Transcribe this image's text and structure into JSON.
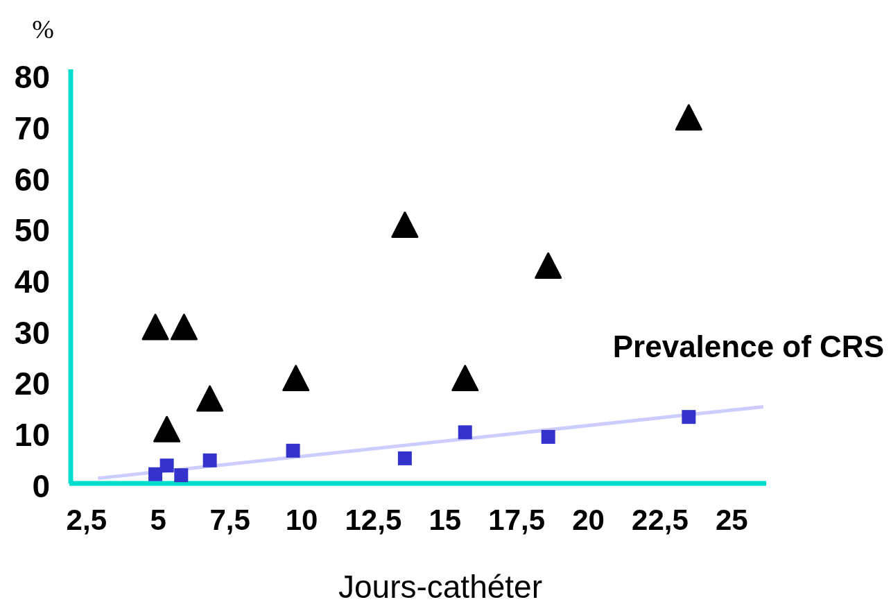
{
  "chart_data": {
    "type": "scatter",
    "ylabel": "%",
    "xlabel": "Jours-cathéter",
    "annotations": [
      "Prevalence of CRS"
    ],
    "xlim": [
      1.9,
      26.2
    ],
    "ylim": [
      0,
      81
    ],
    "xticks": [
      {
        "value": 2.5,
        "label": "2,5"
      },
      5,
      {
        "value": 7.5,
        "label": "7,5"
      },
      10,
      {
        "value": 12.5,
        "label": "12,5"
      },
      15,
      {
        "value": 17.5,
        "label": "17,5"
      },
      20,
      {
        "value": 22.5,
        "label": "22,5"
      },
      25
    ],
    "yticks": [
      0,
      10,
      20,
      30,
      40,
      50,
      60,
      70,
      80
    ],
    "grid": false,
    "legend": false,
    "series": [
      {
        "marker": "triangle",
        "color": "#000000",
        "x": [
          4.9,
          5.9,
          5.3,
          6.8,
          9.8,
          13.6,
          15.7,
          18.6,
          23.5
        ],
        "values": [
          30,
          30,
          10,
          16,
          20,
          50,
          20,
          42,
          71
        ]
      },
      {
        "marker": "square",
        "color": "#3333cc",
        "x": [
          4.9,
          5.3,
          5.8,
          6.8,
          9.7,
          13.6,
          15.7,
          18.6,
          23.5
        ],
        "values": [
          1.8,
          3.5,
          1.6,
          4.5,
          6.4,
          4.9,
          10,
          9.1,
          13
        ]
      },
      {
        "type": "line",
        "marker": "none",
        "line_style": "solid",
        "color": "#ccccff",
        "x": [
          2.9,
          26.1
        ],
        "values": [
          1.0,
          15.0
        ]
      }
    ]
  }
}
